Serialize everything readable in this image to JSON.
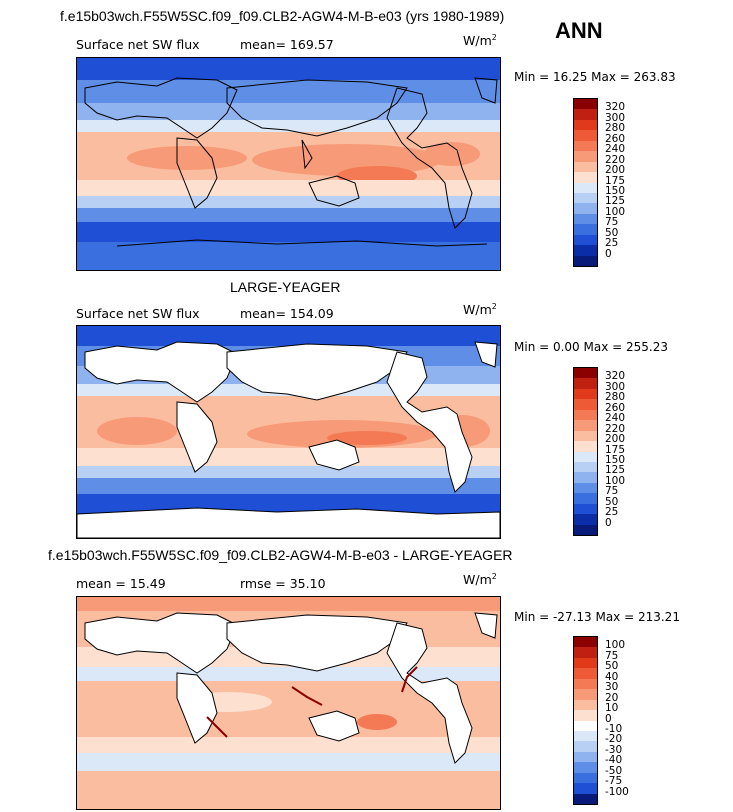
{
  "season": "ANN",
  "panels": [
    {
      "title": "f.e15b03wch.F55W5SC.f09_f09.CLB2-AGW4-M-B-e03 (yrs 1980-1989)",
      "left_label": "Surface net SW flux",
      "stat_label": "mean=",
      "stat_value": "169.57",
      "extra_label": "",
      "extra_value": "",
      "units": "W/m",
      "units_sup": "2",
      "minmax": "Min =  16.25 Max = 263.83",
      "levels": [
        "320",
        "300",
        "280",
        "260",
        "240",
        "220",
        "200",
        "175",
        "150",
        "125",
        "100",
        "75",
        "50",
        "25",
        "0"
      ],
      "colors": [
        "#8b0000",
        "#c02010",
        "#e03a1a",
        "#ef5a36",
        "#f47a55",
        "#f79a78",
        "#fbbd9f",
        "#fde0cf",
        "#dbe8f8",
        "#b8d0f3",
        "#8fb3ee",
        "#5e8ee5",
        "#3a6fe0",
        "#1f4fd4",
        "#0b2ea8",
        "#081a7a"
      ]
    },
    {
      "title": "LARGE-YEAGER",
      "left_label": "Surface net SW flux",
      "stat_label": "mean=",
      "stat_value": "154.09",
      "extra_label": "",
      "extra_value": "",
      "units": "W/m",
      "units_sup": "2",
      "minmax": "Min =   0.00 Max = 255.23",
      "levels": [
        "320",
        "300",
        "280",
        "260",
        "240",
        "220",
        "200",
        "175",
        "150",
        "125",
        "100",
        "75",
        "50",
        "25",
        "0"
      ],
      "colors": [
        "#8b0000",
        "#c02010",
        "#e03a1a",
        "#ef5a36",
        "#f47a55",
        "#f79a78",
        "#fbbd9f",
        "#fde0cf",
        "#dbe8f8",
        "#b8d0f3",
        "#8fb3ee",
        "#5e8ee5",
        "#3a6fe0",
        "#1f4fd4",
        "#0b2ea8",
        "#081a7a"
      ]
    },
    {
      "title": "f.e15b03wch.F55W5SC.f09_f09.CLB2-AGW4-M-B-e03 - LARGE-YEAGER",
      "left_label": "mean =",
      "stat_label": "",
      "stat_value": "15.49",
      "extra_label": "rmse =",
      "extra_value": "35.10",
      "units": "W/m",
      "units_sup": "2",
      "minmax": "Min = -27.13 Max = 213.21",
      "levels": [
        "100",
        "75",
        "50",
        "40",
        "30",
        "20",
        "10",
        "0",
        "-10",
        "-20",
        "-30",
        "-40",
        "-50",
        "-75",
        "-100"
      ],
      "colors": [
        "#8b0000",
        "#c02010",
        "#e03a1a",
        "#ef5a36",
        "#f47a55",
        "#f79a78",
        "#fbbd9f",
        "#fde0cf",
        "#ffffff",
        "#dbe8f8",
        "#b8d0f3",
        "#8fb3ee",
        "#5e8ee5",
        "#3a6fe0",
        "#1f4fd4",
        "#081a7a"
      ]
    }
  ]
}
